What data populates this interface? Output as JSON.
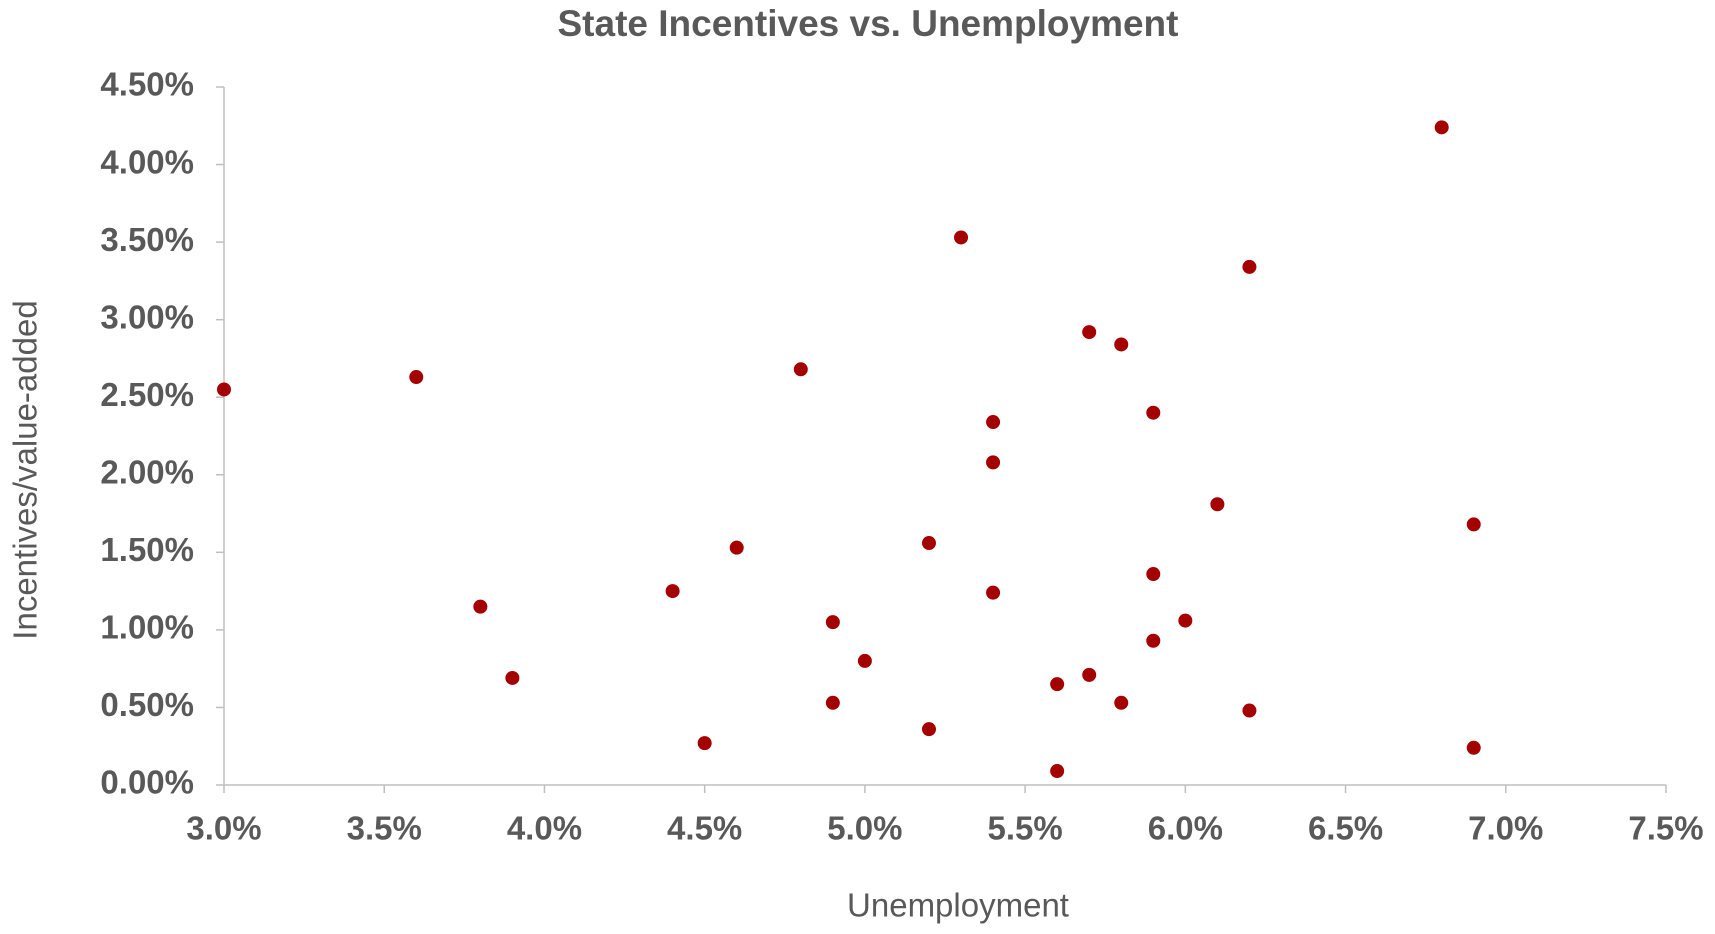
{
  "chart_data": {
    "type": "scatter",
    "title": "State Incentives vs. Unemployment",
    "x_label": "Unemployment",
    "y_label": "Incentives/value-added",
    "series": [
      {
        "color": "#a50000",
        "x": [
          3.0,
          3.6,
          3.8,
          3.9,
          4.4,
          4.5,
          4.6,
          4.8,
          4.9,
          4.9,
          5.0,
          5.2,
          5.2,
          5.3,
          5.4,
          5.4,
          5.4,
          5.6,
          5.6,
          5.7,
          5.7,
          5.8,
          5.8,
          5.9,
          5.9,
          5.9,
          6.0,
          6.1,
          6.2,
          6.2,
          6.8,
          6.9,
          6.9
        ],
        "values": [
          2.55,
          2.63,
          1.15,
          0.69,
          1.25,
          0.27,
          1.53,
          2.68,
          1.05,
          0.53,
          0.8,
          1.56,
          0.36,
          3.53,
          2.34,
          2.08,
          1.24,
          0.65,
          0.09,
          2.92,
          0.71,
          2.84,
          0.53,
          2.4,
          1.36,
          0.93,
          1.06,
          1.81,
          3.34,
          0.48,
          4.24,
          1.68,
          0.24
        ]
      }
    ],
    "xlim": [
      3.0,
      7.5
    ],
    "xticks": [
      {
        "value": 3.0,
        "label": "3.0%"
      },
      {
        "value": 3.5,
        "label": "3.5%"
      },
      {
        "value": 4.0,
        "label": "4.0%"
      },
      {
        "value": 4.5,
        "label": "4.5%"
      },
      {
        "value": 5.0,
        "label": "5.0%"
      },
      {
        "value": 5.5,
        "label": "5.5%"
      },
      {
        "value": 6.0,
        "label": "6.0%"
      },
      {
        "value": 6.5,
        "label": "6.5%"
      },
      {
        "value": 7.0,
        "label": "7.0%"
      },
      {
        "value": 7.5,
        "label": "7.5%"
      }
    ],
    "ylim": [
      0,
      4.5
    ],
    "yticks": [
      {
        "value": 0,
        "label": "0.00%"
      },
      {
        "value": 0.5,
        "label": "0.50%"
      },
      {
        "value": 1.0,
        "label": "1.00%"
      },
      {
        "value": 1.5,
        "label": "1.50%"
      },
      {
        "value": 2.0,
        "label": "2.00%"
      },
      {
        "value": 2.5,
        "label": "2.50%"
      },
      {
        "value": 3.0,
        "label": "3.00%"
      },
      {
        "value": 3.5,
        "label": "3.50%"
      },
      {
        "value": 4.0,
        "label": "4.00%"
      },
      {
        "value": 4.5,
        "label": "4.50%"
      }
    ],
    "grid": false
  }
}
